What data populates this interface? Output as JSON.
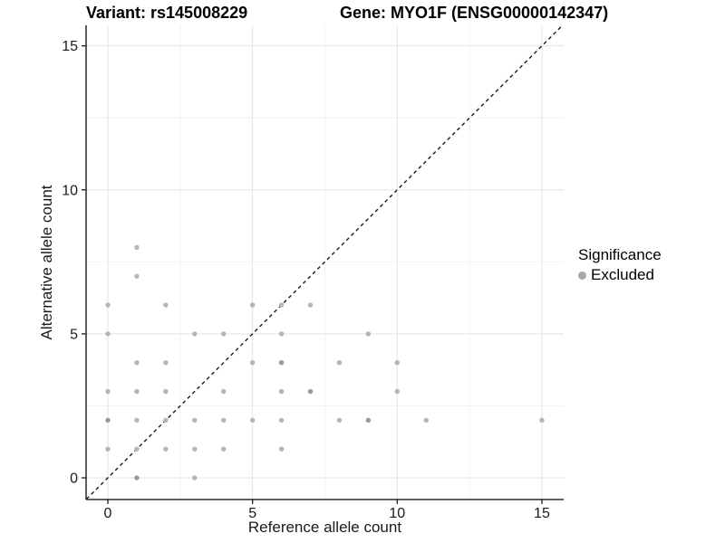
{
  "titles": {
    "variant": "Variant: rs145008229",
    "gene": "Gene: MYO1F (ENSG00000142347)"
  },
  "axes": {
    "x": {
      "label": "Reference allele count",
      "major_ticks": [
        0,
        5,
        10,
        15
      ],
      "minor_ticks": [
        2.5,
        7.5,
        12.5
      ]
    },
    "y": {
      "label": "Alternative allele count",
      "major_ticks": [
        0,
        5,
        10,
        15
      ],
      "minor_ticks": [
        2.5,
        7.5,
        12.5
      ]
    }
  },
  "legend": {
    "title": "Significance",
    "items": [
      {
        "label": "Excluded",
        "color": "#a8a8a8"
      }
    ]
  },
  "chart_data": {
    "type": "scatter",
    "title": "Variant: rs145008229 | Gene: MYO1F (ENSG00000142347)",
    "xlabel": "Reference allele count",
    "ylabel": "Alternative allele count",
    "xlim": [
      -0.75,
      15.75
    ],
    "ylim": [
      -0.75,
      15.75
    ],
    "grid": true,
    "legend_position": "right",
    "identity_line": {
      "style": "dashed",
      "equation": "y = x",
      "from": [
        -0.74,
        -0.74
      ],
      "to": [
        15.72,
        15.72
      ]
    },
    "series": [
      {
        "name": "Excluded",
        "color": "#b5b5b5",
        "overlap_color": "#999999",
        "points": [
          [
            1,
            0
          ],
          [
            3,
            0
          ],
          [
            0,
            1
          ],
          [
            1,
            1
          ],
          [
            2,
            1
          ],
          [
            3,
            1
          ],
          [
            4,
            1
          ],
          [
            6,
            1
          ],
          [
            0,
            2
          ],
          [
            1,
            2
          ],
          [
            2,
            2
          ],
          [
            3,
            2
          ],
          [
            4,
            2
          ],
          [
            5,
            2
          ],
          [
            6,
            2
          ],
          [
            8,
            2
          ],
          [
            9,
            2
          ],
          [
            11,
            2
          ],
          [
            15,
            2
          ],
          [
            0,
            3
          ],
          [
            1,
            3
          ],
          [
            2,
            3
          ],
          [
            4,
            3
          ],
          [
            6,
            3
          ],
          [
            7,
            3
          ],
          [
            10,
            3
          ],
          [
            1,
            4
          ],
          [
            2,
            4
          ],
          [
            5,
            4
          ],
          [
            6,
            4
          ],
          [
            8,
            4
          ],
          [
            10,
            4
          ],
          [
            0,
            5
          ],
          [
            3,
            5
          ],
          [
            4,
            5
          ],
          [
            6,
            5
          ],
          [
            9,
            5
          ],
          [
            0,
            6
          ],
          [
            2,
            6
          ],
          [
            5,
            6
          ],
          [
            6,
            6
          ],
          [
            7,
            6
          ],
          [
            1,
            7
          ],
          [
            1,
            8
          ]
        ],
        "overlap_points": [
          [
            1,
            0
          ],
          [
            0,
            2
          ],
          [
            9,
            2
          ],
          [
            7,
            3
          ],
          [
            6,
            4
          ]
        ]
      }
    ]
  },
  "colors": {
    "background": "#ffffff",
    "axis_line": "#1a1a1a",
    "grid_major": "#e3e3e3",
    "grid_minor": "#f2f2f2",
    "tick_text": "#1a1a1a",
    "identity_line": "#1a1a1a"
  }
}
